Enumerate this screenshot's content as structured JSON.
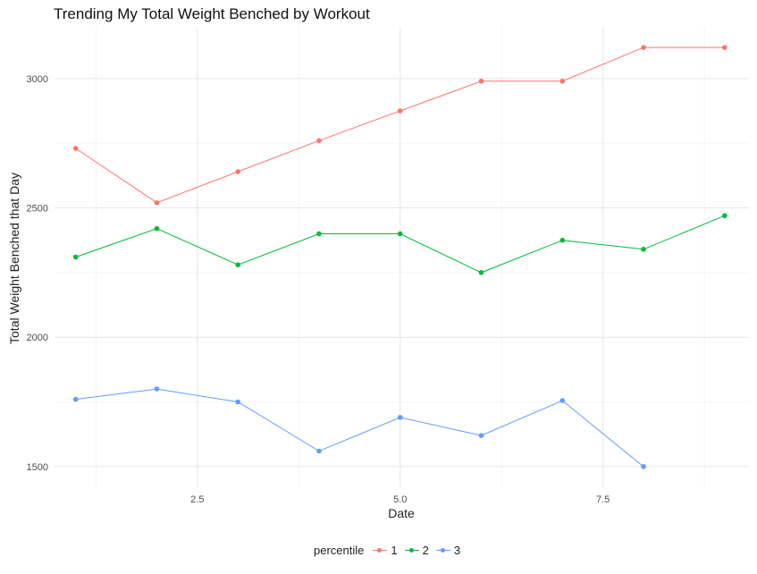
{
  "chart_data": {
    "type": "line",
    "title": "Trending My Total Weight Benched by Workout",
    "xlabel": "Date",
    "ylabel": "Total Weight Benched that Day",
    "xlim": [
      0.75,
      9.3
    ],
    "ylim": [
      1420,
      3200
    ],
    "x_ticks": [
      2.5,
      5.0,
      7.5
    ],
    "x_tick_labels": [
      "2.5",
      "5.0",
      "7.5"
    ],
    "y_ticks": [
      1500,
      2000,
      2500,
      3000
    ],
    "y_tick_labels": [
      "1500",
      "2000",
      "2500",
      "3000"
    ],
    "grid": true,
    "legend": {
      "title": "percentile",
      "position": "bottom"
    },
    "series": [
      {
        "name": "1",
        "color": "#F8766D",
        "x": [
          1,
          2,
          3,
          4,
          5,
          6,
          7,
          8,
          9
        ],
        "values": [
          2730,
          2520,
          2640,
          2760,
          2875,
          2990,
          2990,
          3120,
          3120
        ]
      },
      {
        "name": "2",
        "color": "#00BA38",
        "x": [
          1,
          2,
          3,
          4,
          5,
          6,
          7,
          8,
          9
        ],
        "values": [
          2310,
          2420,
          2280,
          2400,
          2400,
          2250,
          2375,
          2340,
          2470
        ]
      },
      {
        "name": "3",
        "color": "#619CFF",
        "x": [
          1,
          2,
          3,
          4,
          5,
          6,
          7,
          8
        ],
        "values": [
          1760,
          1800,
          1750,
          1560,
          1690,
          1620,
          1755,
          1500
        ]
      }
    ]
  }
}
